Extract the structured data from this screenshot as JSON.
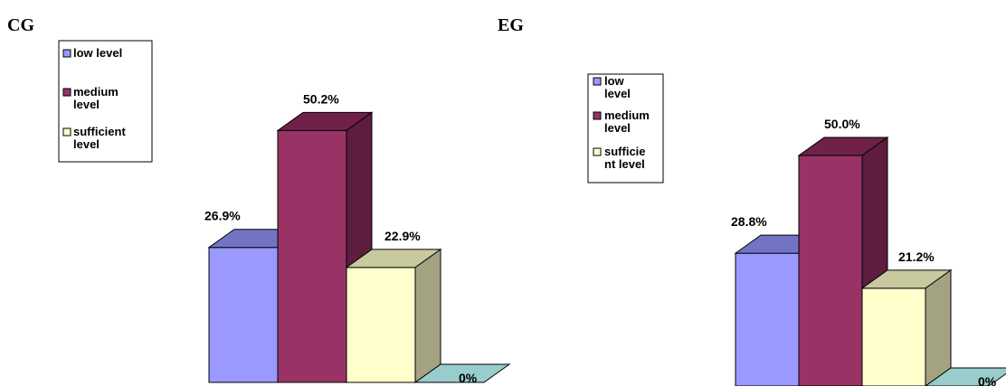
{
  "chart_data": [
    {
      "type": "bar",
      "title": "CG",
      "categories": [
        "low level",
        "medium level",
        "sufficient level",
        ""
      ],
      "values": [
        26.9,
        50.2,
        22.9,
        0
      ],
      "value_labels": [
        "26.9%",
        "50.2%",
        "22.9%",
        "0%"
      ],
      "legend": [
        "low level",
        "medium level",
        "sufficient level"
      ],
      "legend_position": "top-left",
      "ylim": [
        0,
        60
      ],
      "grid": false,
      "style": "3d-column"
    },
    {
      "type": "bar",
      "title": "EG",
      "categories": [
        "low level",
        "medium level",
        "sufficient level",
        ""
      ],
      "values": [
        28.8,
        50.0,
        21.2,
        0
      ],
      "value_labels": [
        "28.8%",
        "50.0%",
        "21.2%",
        "0%"
      ],
      "legend": [
        "low level",
        "medium level",
        "sufficie nt level"
      ],
      "legend_position": "top-left",
      "ylim": [
        0,
        60
      ],
      "grid": false,
      "style": "3d-column"
    }
  ],
  "colors": {
    "low": {
      "front": "#9999ff",
      "top": "#7373c6",
      "side": "#5f5fa6"
    },
    "medium": {
      "front": "#993366",
      "top": "#6f2149",
      "side": "#5e1c3e"
    },
    "sufficient": {
      "front": "#ffffcc",
      "top": "#c9c9a0",
      "side": "#a3a382"
    },
    "zero": {
      "front": "#99cccc",
      "top": "#99cccc",
      "side": "#7fb0b0"
    }
  }
}
